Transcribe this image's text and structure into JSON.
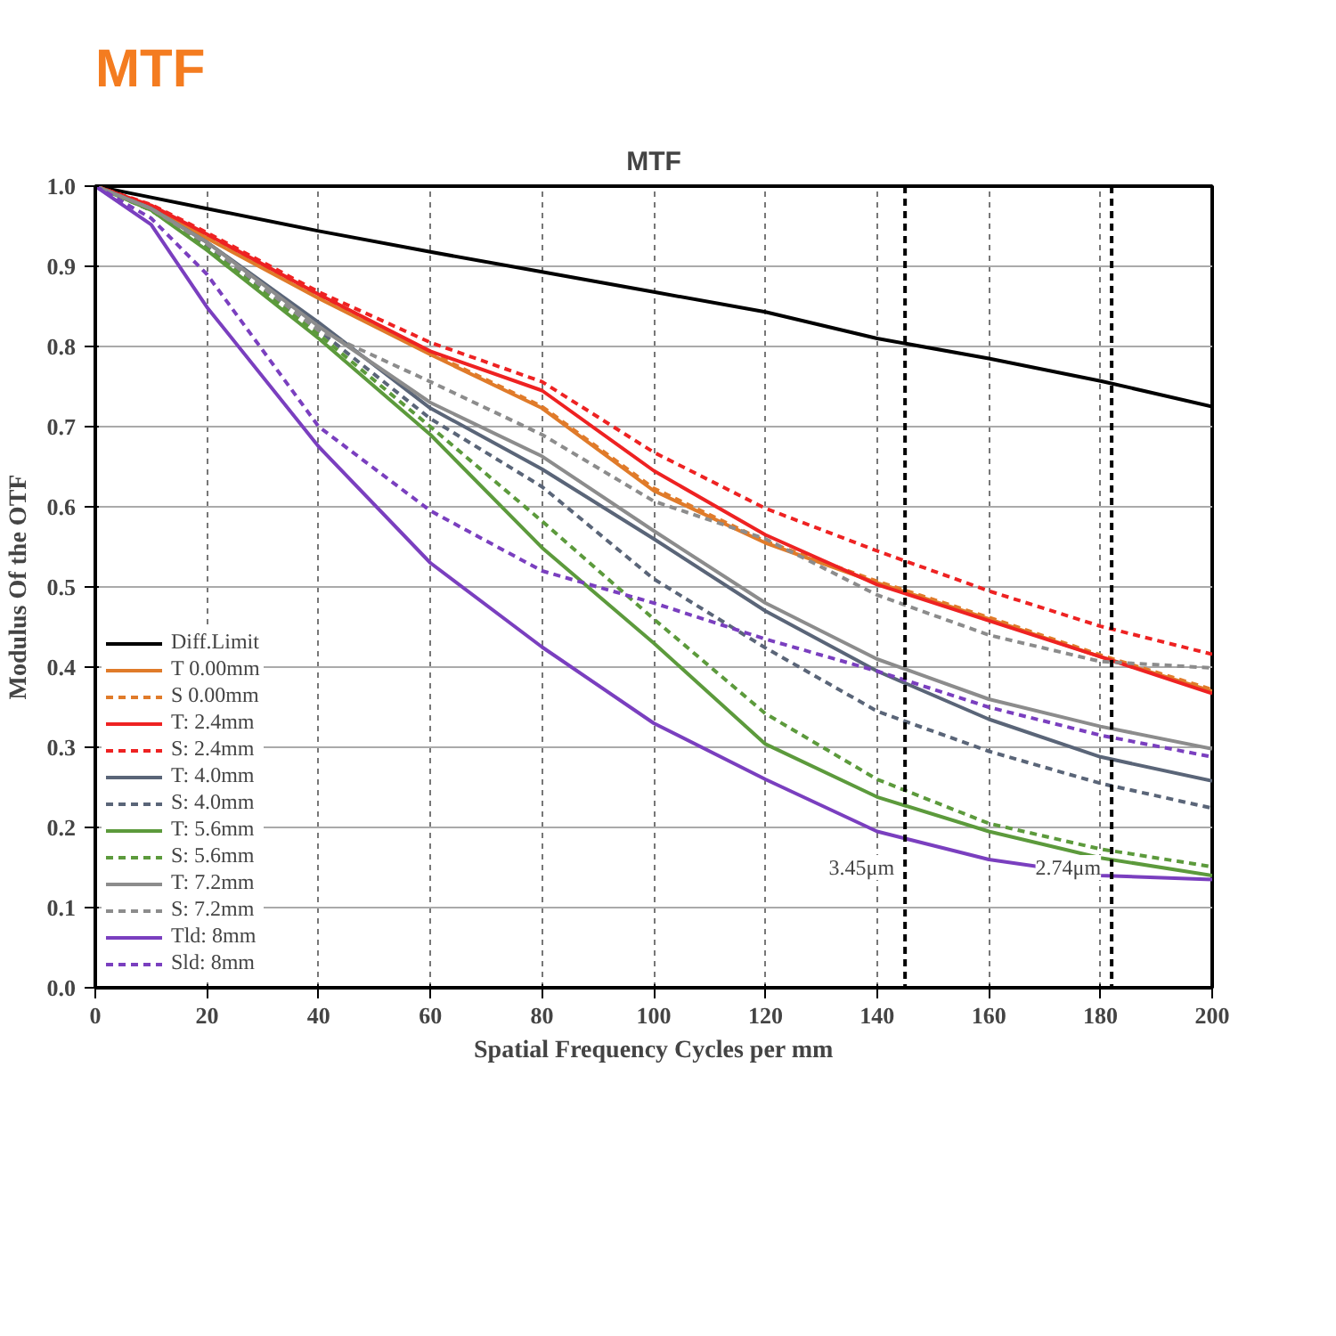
{
  "chart_data": {
    "type": "line",
    "title": "MTF",
    "subtitle": "MTF",
    "xlabel": "Spatial Frequency Cycles per mm",
    "ylabel": "Modulus Of the OTF",
    "x": [
      0,
      10,
      20,
      40,
      60,
      80,
      100,
      120,
      140,
      160,
      180,
      200
    ],
    "xlim": [
      0,
      200
    ],
    "xticks": [
      0,
      20,
      40,
      60,
      80,
      100,
      120,
      140,
      160,
      180,
      200
    ],
    "ylim": [
      0,
      1
    ],
    "yticks": [
      {
        "value": 0,
        "label": "0.0"
      },
      {
        "value": 0.1,
        "label": "0.1"
      },
      {
        "value": 0.2,
        "label": "0.2"
      },
      {
        "value": 0.3,
        "label": "0.3"
      },
      {
        "value": 0.4,
        "label": "0.4"
      },
      {
        "value": 0.5,
        "label": "0.5"
      },
      {
        "value": 0.6,
        "label": "0.6"
      },
      {
        "value": 0.7,
        "label": "0.7"
      },
      {
        "value": 0.8,
        "label": "0.8"
      },
      {
        "value": 0.9,
        "label": "0.9"
      },
      {
        "value": 1,
        "label": "1.0"
      }
    ],
    "grid": true,
    "legend": "bottom left",
    "marker": "none",
    "series": [
      {
        "name": "Diff.Limit",
        "color": "#000000",
        "line_style": "solid",
        "values": [
          1,
          0.986,
          0.972,
          0.944,
          0.918,
          0.893,
          0.868,
          0.843,
          0.81,
          0.785,
          0.757,
          0.725
        ]
      },
      {
        "name": "T 0.00mm",
        "color": "#e07b2a",
        "line_style": "solid",
        "values": [
          1,
          0.975,
          0.935,
          0.86,
          0.79,
          0.723,
          0.62,
          0.555,
          0.505,
          0.46,
          0.413,
          0.37
        ]
      },
      {
        "name": "S 0.00mm",
        "color": "#e07b2a",
        "line_style": "dashed",
        "values": [
          1,
          0.976,
          0.937,
          0.862,
          0.792,
          0.725,
          0.623,
          0.557,
          0.507,
          0.462,
          0.415,
          0.372
        ]
      },
      {
        "name": "T: 2.4mm",
        "color": "#ee2222",
        "line_style": "solid",
        "values": [
          1,
          0.976,
          0.94,
          0.865,
          0.794,
          0.745,
          0.645,
          0.565,
          0.503,
          0.458,
          0.413,
          0.367
        ]
      },
      {
        "name": "S: 2.4mm",
        "color": "#ee2222",
        "line_style": "dashed",
        "values": [
          1,
          0.977,
          0.942,
          0.868,
          0.805,
          0.756,
          0.668,
          0.598,
          0.545,
          0.495,
          0.451,
          0.416
        ]
      },
      {
        "name": "T: 4.0mm",
        "color": "#5a6578",
        "line_style": "solid",
        "values": [
          1,
          0.972,
          0.93,
          0.83,
          0.723,
          0.647,
          0.56,
          0.47,
          0.395,
          0.335,
          0.288,
          0.258
        ]
      },
      {
        "name": "S: 4.0mm",
        "color": "#5a6578",
        "line_style": "dashed",
        "values": [
          1,
          0.97,
          0.925,
          0.82,
          0.71,
          0.625,
          0.51,
          0.424,
          0.345,
          0.295,
          0.255,
          0.224
        ]
      },
      {
        "name": "T: 5.6mm",
        "color": "#5c9a3c",
        "line_style": "solid",
        "values": [
          1,
          0.97,
          0.92,
          0.81,
          0.69,
          0.549,
          0.43,
          0.304,
          0.238,
          0.195,
          0.162,
          0.14
        ]
      },
      {
        "name": "S: 5.6mm",
        "color": "#5c9a3c",
        "line_style": "dashed",
        "values": [
          1,
          0.97,
          0.922,
          0.815,
          0.7,
          0.582,
          0.46,
          0.342,
          0.26,
          0.205,
          0.173,
          0.151
        ]
      },
      {
        "name": "T: 7.2mm",
        "color": "#8c8c8c",
        "line_style": "solid",
        "values": [
          1,
          0.972,
          0.93,
          0.825,
          0.73,
          0.663,
          0.57,
          0.48,
          0.41,
          0.36,
          0.326,
          0.298
        ]
      },
      {
        "name": "S: 7.2mm",
        "color": "#8c8c8c",
        "line_style": "dashed",
        "values": [
          1,
          0.972,
          0.928,
          0.82,
          0.756,
          0.69,
          0.607,
          0.56,
          0.49,
          0.44,
          0.407,
          0.399
        ]
      },
      {
        "name": "Tld: 8mm",
        "color": "#7a3fbf",
        "line_style": "solid",
        "values": [
          1,
          0.952,
          0.849,
          0.675,
          0.53,
          0.425,
          0.33,
          0.26,
          0.195,
          0.16,
          0.14,
          0.135
        ]
      },
      {
        "name": "Sld: 8mm",
        "color": "#7a3fbf",
        "line_style": "dashed",
        "values": [
          1,
          0.96,
          0.89,
          0.7,
          0.595,
          0.52,
          0.48,
          0.435,
          0.395,
          0.35,
          0.315,
          0.288
        ]
      }
    ],
    "ref_lines": [
      {
        "axis": "x",
        "value": 145,
        "color": "#000000",
        "line_style": "dashed",
        "label": "3.45μm"
      },
      {
        "axis": "x",
        "value": 182,
        "color": "#000000",
        "line_style": "dashed",
        "label": "2.74μm"
      }
    ]
  }
}
